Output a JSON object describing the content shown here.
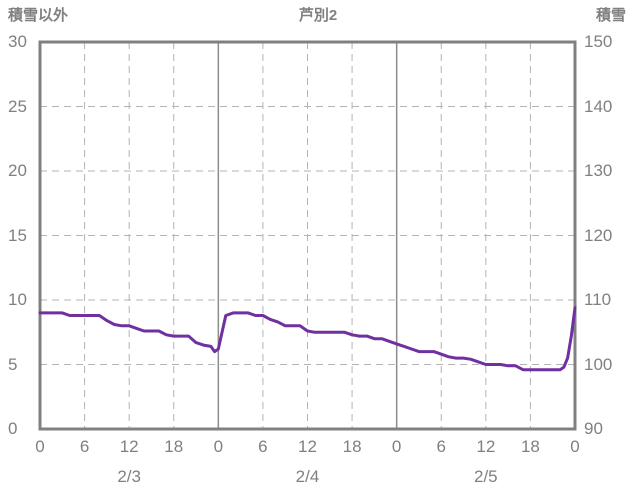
{
  "chart_data": {
    "type": "line",
    "title": "芦別2",
    "left_axis_label": "積雪以外",
    "right_axis_label": "積雪",
    "left_ylim": [
      0,
      30
    ],
    "right_ylim": [
      90,
      150
    ],
    "left_ticks": [
      0,
      5,
      10,
      15,
      20,
      25,
      30
    ],
    "right_ticks": [
      90,
      100,
      110,
      120,
      130,
      140,
      150
    ],
    "x_hours_range": [
      0,
      72
    ],
    "x_tick_hours": [
      0,
      6,
      12,
      18,
      24,
      30,
      36,
      42,
      48,
      54,
      60,
      66,
      72
    ],
    "x_tick_labels": [
      "0",
      "6",
      "12",
      "18",
      "0",
      "6",
      "12",
      "18",
      "0",
      "6",
      "12",
      "18",
      "0"
    ],
    "day_labels": [
      "2/3",
      "2/4",
      "2/5"
    ],
    "day_center_hours": [
      12,
      36,
      60
    ],
    "day_boundaries_hours": [
      24,
      48
    ],
    "grid": "horizontal dashed at left ticks; vertical dashed every 6h; solid lines at day boundaries",
    "legend_position": "none",
    "colors": {
      "axis_text": "#808080",
      "border": "#808080",
      "grid": "#b3b3b3",
      "series": "#7030A0"
    },
    "series": [
      {
        "name": "積雪",
        "color": "#7030A0",
        "y_scale": "left-axis units (0-30)",
        "points": [
          [
            0,
            9.0
          ],
          [
            1,
            9.0
          ],
          [
            2,
            9.0
          ],
          [
            3,
            9.0
          ],
          [
            4,
            8.8
          ],
          [
            5,
            8.8
          ],
          [
            6,
            8.8
          ],
          [
            7,
            8.8
          ],
          [
            8,
            8.8
          ],
          [
            9,
            8.4
          ],
          [
            10,
            8.1
          ],
          [
            11,
            8.0
          ],
          [
            12,
            8.0
          ],
          [
            13,
            7.8
          ],
          [
            14,
            7.6
          ],
          [
            15,
            7.6
          ],
          [
            16,
            7.6
          ],
          [
            17,
            7.3
          ],
          [
            18,
            7.2
          ],
          [
            19,
            7.2
          ],
          [
            20,
            7.2
          ],
          [
            21,
            6.7
          ],
          [
            22,
            6.5
          ],
          [
            23,
            6.4
          ],
          [
            23.5,
            6.0
          ],
          [
            24,
            6.2
          ],
          [
            25,
            8.8
          ],
          [
            26,
            9.0
          ],
          [
            27,
            9.0
          ],
          [
            28,
            9.0
          ],
          [
            29,
            8.8
          ],
          [
            30,
            8.8
          ],
          [
            31,
            8.5
          ],
          [
            32,
            8.3
          ],
          [
            33,
            8.0
          ],
          [
            34,
            8.0
          ],
          [
            35,
            8.0
          ],
          [
            36,
            7.6
          ],
          [
            37,
            7.5
          ],
          [
            38,
            7.5
          ],
          [
            39,
            7.5
          ],
          [
            40,
            7.5
          ],
          [
            41,
            7.5
          ],
          [
            42,
            7.3
          ],
          [
            43,
            7.2
          ],
          [
            44,
            7.2
          ],
          [
            45,
            7.0
          ],
          [
            46,
            7.0
          ],
          [
            47,
            6.8
          ],
          [
            48,
            6.6
          ],
          [
            49,
            6.4
          ],
          [
            50,
            6.2
          ],
          [
            51,
            6.0
          ],
          [
            52,
            6.0
          ],
          [
            53,
            6.0
          ],
          [
            54,
            5.8
          ],
          [
            55,
            5.6
          ],
          [
            56,
            5.5
          ],
          [
            57,
            5.5
          ],
          [
            58,
            5.4
          ],
          [
            59,
            5.2
          ],
          [
            60,
            5.0
          ],
          [
            61,
            5.0
          ],
          [
            62,
            5.0
          ],
          [
            63,
            4.9
          ],
          [
            64,
            4.9
          ],
          [
            65,
            4.6
          ],
          [
            66,
            4.6
          ],
          [
            67,
            4.6
          ],
          [
            68,
            4.6
          ],
          [
            69,
            4.6
          ],
          [
            70,
            4.6
          ],
          [
            70.5,
            4.8
          ],
          [
            71,
            5.5
          ],
          [
            71.5,
            7.2
          ],
          [
            72,
            9.4
          ]
        ]
      }
    ]
  }
}
